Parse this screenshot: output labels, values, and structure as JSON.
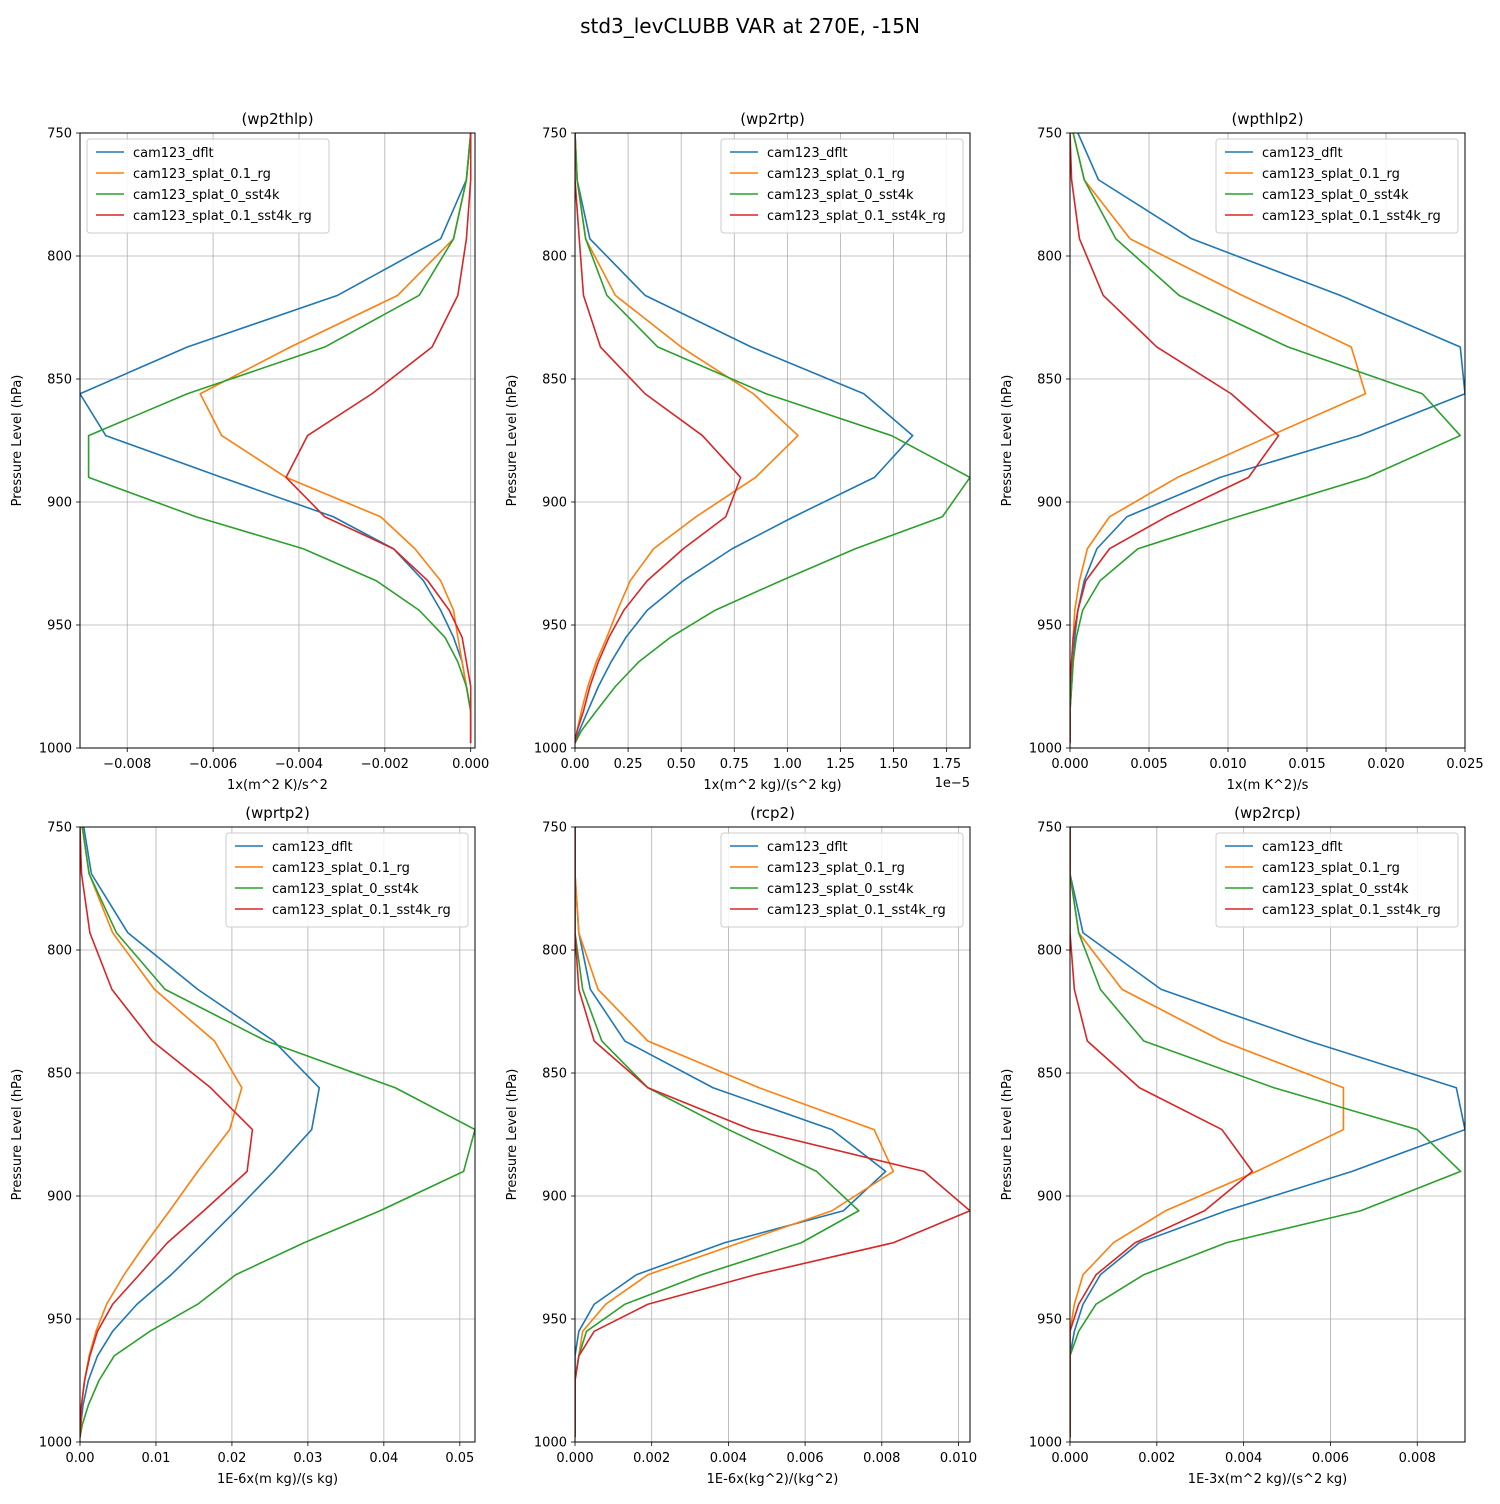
{
  "figure": {
    "title": "std3_levCLUBB VAR at 270E, -15N"
  },
  "colors": {
    "cam123_dflt": "#1f77b4",
    "cam123_splat_0.1_rg": "#ff7f0e",
    "cam123_splat_0_sst4k": "#2ca02c",
    "cam123_splat_0.1_sst4k_rg": "#d62728"
  },
  "chart_data": [
    {
      "type": "line",
      "title": "(wp2thlp)",
      "xlabel": "1x(m^2 K)/s^2",
      "ylabel": "Pressure Level (hPa)",
      "xlim": [
        -0.0091,
        0.0001
      ],
      "ylim": [
        1000,
        750
      ],
      "xticks": [
        -0.008,
        -0.006,
        -0.004,
        -0.002,
        0.0
      ],
      "xticklabels": [
        "−0.008",
        "−0.006",
        "−0.004",
        "−0.002",
        "0.000"
      ],
      "yticks": [
        750,
        800,
        850,
        900,
        950,
        1000
      ],
      "offset_text": "",
      "legend_loc": "upper-left",
      "grid": true,
      "levels": [
        750,
        769,
        793,
        816,
        837,
        856,
        873,
        890,
        906,
        919,
        932,
        944,
        955,
        965,
        975,
        985,
        993,
        998
      ],
      "series": [
        {
          "name": "cam123_dflt",
          "values": [
            0.0,
            -0.0001,
            -0.0007,
            -0.0031,
            -0.0066,
            -0.0091,
            -0.0085,
            -0.0058,
            -0.0032,
            -0.0018,
            -0.0011,
            -0.0007,
            -0.0004,
            -0.0002,
            -0.0001,
            0.0,
            0.0,
            0.0
          ]
        },
        {
          "name": "cam123_splat_0.1_rg",
          "values": [
            0.0,
            -0.0001,
            -0.0004,
            -0.0017,
            -0.0042,
            -0.0063,
            -0.0058,
            -0.0043,
            -0.0021,
            -0.0013,
            -0.0007,
            -0.0004,
            -0.0003,
            -0.0002,
            -0.0001,
            0.0,
            0.0,
            0.0
          ]
        },
        {
          "name": "cam123_splat_0_sst4k",
          "values": [
            0.0,
            -0.0001,
            -0.0004,
            -0.0012,
            -0.0034,
            -0.0066,
            -0.0089,
            -0.0089,
            -0.0064,
            -0.0039,
            -0.0022,
            -0.0012,
            -0.0006,
            -0.0003,
            -0.0001,
            0.0,
            0.0,
            0.0
          ]
        },
        {
          "name": "cam123_splat_0.1_sst4k_rg",
          "values": [
            0.0,
            0.0,
            -0.0001,
            -0.0003,
            -0.0009,
            -0.0023,
            -0.0038,
            -0.0043,
            -0.0034,
            -0.0018,
            -0.001,
            -0.0005,
            -0.0002,
            -0.0001,
            0.0,
            0.0,
            0.0,
            0.0
          ]
        }
      ]
    },
    {
      "type": "line",
      "title": "(wp2rtp)",
      "xlabel": "1x(m^2 kg)/(s^2 kg)",
      "ylabel": "Pressure Level (hPa)",
      "xlim": [
        0,
        1.86
      ],
      "ylim": [
        1000,
        750
      ],
      "xticks": [
        0.0,
        0.25,
        0.5,
        0.75,
        1.0,
        1.25,
        1.5,
        1.75
      ],
      "xticklabels": [
        "0.00",
        "0.25",
        "0.50",
        "0.75",
        "1.00",
        "1.25",
        "1.50",
        "1.75"
      ],
      "yticks": [
        750,
        800,
        850,
        900,
        950,
        1000
      ],
      "offset_text": "1e−5",
      "legend_loc": "upper-right",
      "grid": true,
      "levels": [
        750,
        769,
        793,
        816,
        837,
        856,
        873,
        890,
        906,
        919,
        932,
        944,
        955,
        965,
        975,
        985,
        993,
        998
      ],
      "series": [
        {
          "name": "cam123_dflt",
          "values": [
            0.0,
            0.01,
            0.07,
            0.33,
            0.83,
            1.36,
            1.59,
            1.41,
            1.03,
            0.74,
            0.51,
            0.34,
            0.24,
            0.17,
            0.11,
            0.06,
            0.02,
            0.0
          ]
        },
        {
          "name": "cam123_splat_0.1_rg",
          "values": [
            0.0,
            0.01,
            0.05,
            0.19,
            0.5,
            0.84,
            1.05,
            0.85,
            0.57,
            0.37,
            0.26,
            0.2,
            0.15,
            0.1,
            0.06,
            0.03,
            0.01,
            0.0
          ]
        },
        {
          "name": "cam123_splat_0_sst4k",
          "values": [
            0.0,
            0.01,
            0.05,
            0.15,
            0.39,
            0.9,
            1.49,
            1.86,
            1.73,
            1.32,
            0.97,
            0.66,
            0.45,
            0.3,
            0.19,
            0.1,
            0.03,
            0.0
          ]
        },
        {
          "name": "cam123_splat_0.1_sst4k_rg",
          "values": [
            0.0,
            0.0,
            0.02,
            0.04,
            0.12,
            0.33,
            0.6,
            0.78,
            0.71,
            0.51,
            0.34,
            0.23,
            0.16,
            0.11,
            0.07,
            0.04,
            0.01,
            0.0
          ]
        }
      ]
    },
    {
      "type": "line",
      "title": "(wpthlp2)",
      "xlabel": "1x(m K^2)/s",
      "ylabel": "Pressure Level (hPa)",
      "xlim": [
        0,
        0.025
      ],
      "ylim": [
        1000,
        750
      ],
      "xticks": [
        0.0,
        0.005,
        0.01,
        0.015,
        0.02,
        0.025
      ],
      "xticklabels": [
        "0.000",
        "0.005",
        "0.010",
        "0.015",
        "0.020",
        "0.025"
      ],
      "yticks": [
        750,
        800,
        850,
        900,
        950,
        1000
      ],
      "offset_text": "",
      "legend_loc": "upper-right",
      "grid": true,
      "levels": [
        750,
        769,
        793,
        816,
        837,
        856,
        873,
        890,
        906,
        919,
        932,
        944,
        955,
        965,
        975,
        985,
        993,
        998
      ],
      "series": [
        {
          "name": "cam123_dflt",
          "values": [
            0.0005,
            0.0018,
            0.0077,
            0.0171,
            0.0247,
            0.025,
            0.0183,
            0.0095,
            0.0036,
            0.0017,
            0.0009,
            0.0005,
            0.0003,
            0.0002,
            0.0001,
            0.0,
            0.0,
            0.0
          ]
        },
        {
          "name": "cam123_splat_0.1_rg",
          "values": [
            0.0002,
            0.0009,
            0.0038,
            0.0109,
            0.0178,
            0.0187,
            0.0127,
            0.0068,
            0.0025,
            0.0011,
            0.0006,
            0.0003,
            0.0002,
            0.0001,
            0.0,
            0.0,
            0.0,
            0.0
          ]
        },
        {
          "name": "cam123_splat_0_sst4k",
          "values": [
            0.0002,
            0.0009,
            0.0029,
            0.0069,
            0.0138,
            0.0223,
            0.0247,
            0.0188,
            0.0106,
            0.0043,
            0.0019,
            0.0008,
            0.0004,
            0.0002,
            0.0001,
            0.0,
            0.0,
            0.0
          ]
        },
        {
          "name": "cam123_splat_0.1_sst4k_rg",
          "values": [
            0.0,
            0.0001,
            0.0006,
            0.0021,
            0.0055,
            0.0102,
            0.0132,
            0.0113,
            0.0061,
            0.0025,
            0.001,
            0.0005,
            0.0002,
            0.0001,
            0.0,
            0.0,
            0.0,
            0.0
          ]
        }
      ]
    },
    {
      "type": "line",
      "title": "(wprtp2)",
      "xlabel": "1E-6x(m kg)/(s kg)",
      "ylabel": "Pressure Level (hPa)",
      "xlim": [
        0,
        0.052
      ],
      "ylim": [
        1000,
        750
      ],
      "xticks": [
        0.0,
        0.01,
        0.02,
        0.03,
        0.04,
        0.05
      ],
      "xticklabels": [
        "0.00",
        "0.01",
        "0.02",
        "0.03",
        "0.04",
        "0.05"
      ],
      "yticks": [
        750,
        800,
        850,
        900,
        950,
        1000
      ],
      "offset_text": "",
      "legend_loc": "upper-right",
      "grid": true,
      "levels": [
        750,
        769,
        793,
        816,
        837,
        856,
        873,
        890,
        906,
        919,
        932,
        944,
        955,
        965,
        975,
        985,
        993,
        998
      ],
      "series": [
        {
          "name": "cam123_dflt",
          "values": [
            0.0005,
            0.0015,
            0.0063,
            0.0155,
            0.0255,
            0.0315,
            0.0305,
            0.0255,
            0.0205,
            0.0163,
            0.012,
            0.0075,
            0.0043,
            0.0023,
            0.0011,
            0.0004,
            0.0001,
            0.0
          ]
        },
        {
          "name": "cam123_splat_0.1_rg",
          "values": [
            0.0003,
            0.0012,
            0.0043,
            0.0098,
            0.0177,
            0.0213,
            0.0197,
            0.0155,
            0.0118,
            0.0087,
            0.0058,
            0.0035,
            0.0021,
            0.0012,
            0.0006,
            0.0002,
            0.0001,
            0.0
          ]
        },
        {
          "name": "cam123_splat_0_sst4k",
          "values": [
            0.0003,
            0.0012,
            0.0048,
            0.0112,
            0.0245,
            0.0415,
            0.052,
            0.0505,
            0.0395,
            0.0295,
            0.0205,
            0.0155,
            0.0092,
            0.0045,
            0.0025,
            0.0011,
            0.0003,
            0.0
          ]
        },
        {
          "name": "cam123_splat_0.1_sst4k_rg",
          "values": [
            0.0,
            0.0002,
            0.0013,
            0.0042,
            0.0095,
            0.0172,
            0.0227,
            0.022,
            0.0163,
            0.0115,
            0.0078,
            0.0043,
            0.0023,
            0.0013,
            0.0006,
            0.0002,
            0.0001,
            0.0
          ]
        }
      ]
    },
    {
      "type": "line",
      "title": "(rcp2)",
      "xlabel": "1E-6x(kg^2)/(kg^2)",
      "ylabel": "Pressure Level (hPa)",
      "xlim": [
        0,
        0.0103
      ],
      "ylim": [
        1000,
        750
      ],
      "xticks": [
        0.0,
        0.002,
        0.004,
        0.006,
        0.008,
        0.01
      ],
      "xticklabels": [
        "0.000",
        "0.002",
        "0.004",
        "0.006",
        "0.008",
        "0.010"
      ],
      "yticks": [
        750,
        800,
        850,
        900,
        950,
        1000
      ],
      "offset_text": "",
      "legend_loc": "upper-right",
      "grid": true,
      "levels": [
        750,
        769,
        793,
        816,
        837,
        856,
        873,
        890,
        906,
        919,
        932,
        944,
        955,
        965,
        975,
        985,
        993,
        998
      ],
      "series": [
        {
          "name": "cam123_dflt",
          "values": [
            0.0,
            0.0,
            0.0001,
            0.0004,
            0.0013,
            0.0036,
            0.0067,
            0.0081,
            0.007,
            0.0039,
            0.0016,
            0.0005,
            0.0001,
            0.0,
            0.0,
            0.0,
            0.0,
            0.0
          ]
        },
        {
          "name": "cam123_splat_0.1_rg",
          "values": [
            0.0,
            0.0,
            0.0001,
            0.0006,
            0.0019,
            0.0048,
            0.0078,
            0.0083,
            0.0067,
            0.0043,
            0.0019,
            0.0008,
            0.0002,
            0.0001,
            0.0,
            0.0,
            0.0,
            0.0
          ]
        },
        {
          "name": "cam123_splat_0_sst4k",
          "values": [
            0.0,
            0.0,
            0.0,
            0.0002,
            0.0007,
            0.0019,
            0.004,
            0.0063,
            0.0074,
            0.0059,
            0.0033,
            0.0013,
            0.0003,
            0.0001,
            0.0,
            0.0,
            0.0,
            0.0
          ]
        },
        {
          "name": "cam123_splat_0.1_sst4k_rg",
          "values": [
            0.0,
            0.0,
            0.0,
            0.0001,
            0.0005,
            0.0019,
            0.0046,
            0.0091,
            0.0103,
            0.0083,
            0.0047,
            0.0019,
            0.0005,
            0.0001,
            0.0,
            0.0,
            0.0,
            0.0
          ]
        }
      ]
    },
    {
      "type": "line",
      "title": "(wp2rcp)",
      "xlabel": "1E-3x(m^2 kg)/(s^2 kg)",
      "ylabel": "Pressure Level (hPa)",
      "xlim": [
        0,
        0.0091
      ],
      "ylim": [
        1000,
        750
      ],
      "xticks": [
        0.0,
        0.002,
        0.004,
        0.006,
        0.008
      ],
      "xticklabels": [
        "0.000",
        "0.002",
        "0.004",
        "0.006",
        "0.008"
      ],
      "yticks": [
        750,
        800,
        850,
        900,
        950,
        1000
      ],
      "offset_text": "",
      "legend_loc": "upper-right",
      "grid": true,
      "levels": [
        750,
        769,
        793,
        816,
        837,
        856,
        873,
        890,
        906,
        919,
        932,
        944,
        955,
        965,
        975,
        985,
        993,
        998
      ],
      "series": [
        {
          "name": "cam123_dflt",
          "values": [
            0.0,
            0.0,
            0.0003,
            0.0021,
            0.0055,
            0.0089,
            0.0091,
            0.0065,
            0.0036,
            0.0016,
            0.0007,
            0.0003,
            0.0001,
            0.0,
            0.0,
            0.0,
            0.0,
            0.0
          ]
        },
        {
          "name": "cam123_splat_0.1_rg",
          "values": [
            0.0,
            0.0,
            0.0002,
            0.0012,
            0.0035,
            0.0063,
            0.0063,
            0.0043,
            0.0022,
            0.001,
            0.0003,
            0.0001,
            0.0,
            0.0,
            0.0,
            0.0,
            0.0,
            0.0
          ]
        },
        {
          "name": "cam123_splat_0_sst4k",
          "values": [
            0.0,
            0.0,
            0.0002,
            0.0007,
            0.0017,
            0.0047,
            0.008,
            0.009,
            0.0067,
            0.0036,
            0.0017,
            0.0006,
            0.0002,
            0.0,
            0.0,
            0.0,
            0.0,
            0.0
          ]
        },
        {
          "name": "cam123_splat_0.1_sst4k_rg",
          "values": [
            0.0,
            0.0,
            0.0,
            0.0001,
            0.0004,
            0.0016,
            0.0035,
            0.0042,
            0.0031,
            0.0015,
            0.0006,
            0.0002,
            0.0,
            0.0,
            0.0,
            0.0,
            0.0,
            0.0
          ]
        }
      ]
    }
  ]
}
